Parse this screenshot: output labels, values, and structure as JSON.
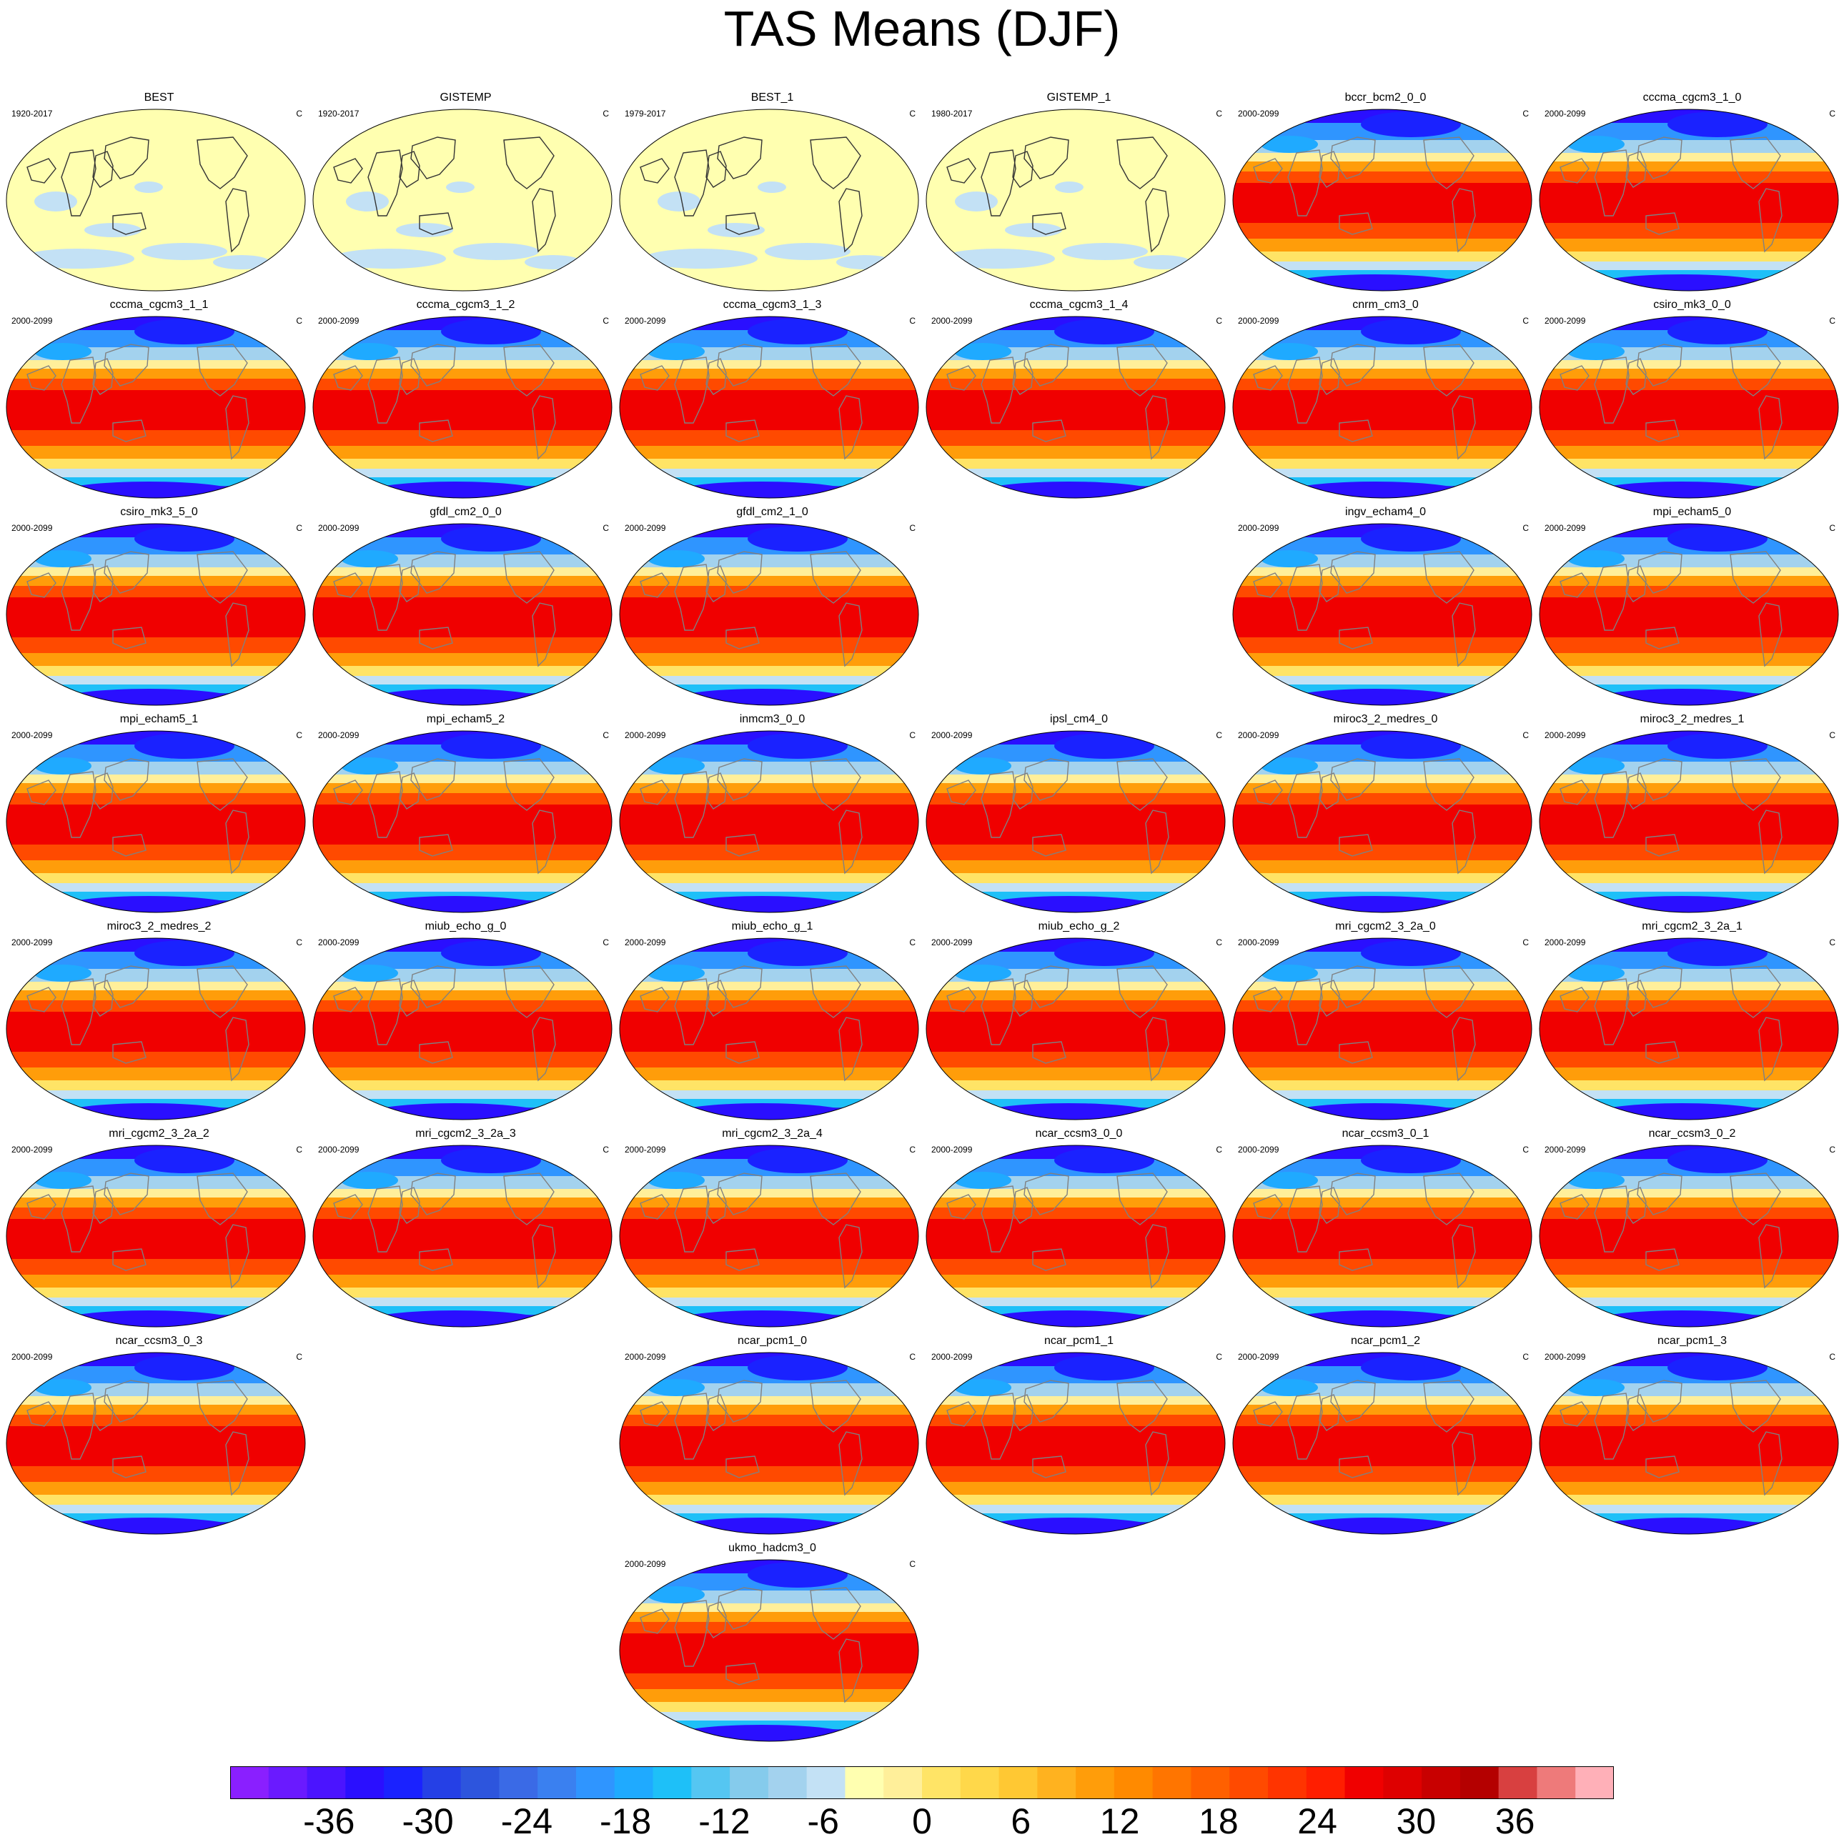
{
  "title": "TAS Means (DJF)",
  "units": "C",
  "colors": {
    "scale": [
      "#8a1fff",
      "#6a1aff",
      "#4b14ff",
      "#2a0fff",
      "#1a22ff",
      "#2540e6",
      "#2d55dd",
      "#3a6ae6",
      "#3a80f0",
      "#2f95ff",
      "#1faaff",
      "#1ec0f8",
      "#55c6f2",
      "#85cbec",
      "#a3d2ee",
      "#c3e1f5",
      "#ffffb0",
      "#ffef9a",
      "#ffe466",
      "#ffd84a",
      "#ffc833",
      "#ffb21f",
      "#ff9d0a",
      "#ff8a00",
      "#ff7500",
      "#ff6000",
      "#ff4a00",
      "#ff3400",
      "#ff1e00",
      "#f00000",
      "#de0000",
      "#c80000",
      "#b40000",
      "#d84040",
      "#ee7a7a",
      "#ffb0b8"
    ]
  },
  "chart_data": {
    "type": "heatmap",
    "title": "TAS Means (DJF)",
    "projection": "Robinson",
    "units": "C",
    "colorbar": {
      "range": [
        -42,
        42
      ],
      "step": 2.33,
      "tick_labels": [
        "-36",
        "-30",
        "-24",
        "-18",
        "-12",
        "-6",
        "0",
        "6",
        "12",
        "18",
        "24",
        "30",
        "36"
      ]
    },
    "panels": [
      {
        "name": "BEST",
        "years": "1920-2017",
        "kind": "obs"
      },
      {
        "name": "GISTEMP",
        "years": "1920-2017",
        "kind": "obs"
      },
      {
        "name": "BEST_1",
        "years": "1979-2017",
        "kind": "obs"
      },
      {
        "name": "GISTEMP_1",
        "years": "1980-2017",
        "kind": "obs"
      },
      {
        "name": "bccr_bcm2_0_0",
        "years": "2000-2099",
        "kind": "model"
      },
      {
        "name": "cccma_cgcm3_1_0",
        "years": "2000-2099",
        "kind": "model"
      },
      {
        "name": "cccma_cgcm3_1_1",
        "years": "2000-2099",
        "kind": "model"
      },
      {
        "name": "cccma_cgcm3_1_2",
        "years": "2000-2099",
        "kind": "model"
      },
      {
        "name": "cccma_cgcm3_1_3",
        "years": "2000-2099",
        "kind": "model"
      },
      {
        "name": "cccma_cgcm3_1_4",
        "years": "2000-2099",
        "kind": "model"
      },
      {
        "name": "cnrm_cm3_0",
        "years": "2000-2099",
        "kind": "model"
      },
      {
        "name": "csiro_mk3_0_0",
        "years": "2000-2099",
        "kind": "model"
      },
      {
        "name": "csiro_mk3_5_0",
        "years": "2000-2099",
        "kind": "model"
      },
      {
        "name": "gfdl_cm2_0_0",
        "years": "2000-2099",
        "kind": "model"
      },
      {
        "name": "gfdl_cm2_1_0",
        "years": "2000-2099",
        "kind": "model"
      },
      {
        "name": "ingv_echam4_0",
        "years": "2000-2099",
        "kind": "model"
      },
      {
        "name": "mpi_echam5_0",
        "years": "2000-2099",
        "kind": "model"
      },
      {
        "name": "mpi_echam5_1",
        "years": "2000-2099",
        "kind": "model"
      },
      {
        "name": "mpi_echam5_2",
        "years": "2000-2099",
        "kind": "model"
      },
      {
        "name": "inmcm3_0_0",
        "years": "2000-2099",
        "kind": "model"
      },
      {
        "name": "ipsl_cm4_0",
        "years": "2000-2099",
        "kind": "model"
      },
      {
        "name": "miroc3_2_medres_0",
        "years": "2000-2099",
        "kind": "model"
      },
      {
        "name": "miroc3_2_medres_1",
        "years": "2000-2099",
        "kind": "model"
      },
      {
        "name": "miroc3_2_medres_2",
        "years": "2000-2099",
        "kind": "model"
      },
      {
        "name": "miub_echo_g_0",
        "years": "2000-2099",
        "kind": "model"
      },
      {
        "name": "miub_echo_g_1",
        "years": "2000-2099",
        "kind": "model"
      },
      {
        "name": "miub_echo_g_2",
        "years": "2000-2099",
        "kind": "model"
      },
      {
        "name": "mri_cgcm2_3_2a_0",
        "years": "2000-2099",
        "kind": "model"
      },
      {
        "name": "mri_cgcm2_3_2a_1",
        "years": "2000-2099",
        "kind": "model"
      },
      {
        "name": "mri_cgcm2_3_2a_2",
        "years": "2000-2099",
        "kind": "model"
      },
      {
        "name": "mri_cgcm2_3_2a_3",
        "years": "2000-2099",
        "kind": "model"
      },
      {
        "name": "mri_cgcm2_3_2a_4",
        "years": "2000-2099",
        "kind": "model"
      },
      {
        "name": "ncar_ccsm3_0_0",
        "years": "2000-2099",
        "kind": "model"
      },
      {
        "name": "ncar_ccsm3_0_1",
        "years": "2000-2099",
        "kind": "model"
      },
      {
        "name": "ncar_ccsm3_0_2",
        "years": "2000-2099",
        "kind": "model"
      },
      {
        "name": "ncar_ccsm3_0_3",
        "years": "2000-2099",
        "kind": "model"
      },
      {
        "name": "ncar_pcm1_0",
        "years": "2000-2099",
        "kind": "model"
      },
      {
        "name": "ncar_pcm1_1",
        "years": "2000-2099",
        "kind": "model"
      },
      {
        "name": "ncar_pcm1_2",
        "years": "2000-2099",
        "kind": "model"
      },
      {
        "name": "ncar_pcm1_3",
        "years": "2000-2099",
        "kind": "model"
      },
      {
        "name": "ukmo_hadcm3_0",
        "years": "2000-2099",
        "kind": "model"
      }
    ]
  }
}
